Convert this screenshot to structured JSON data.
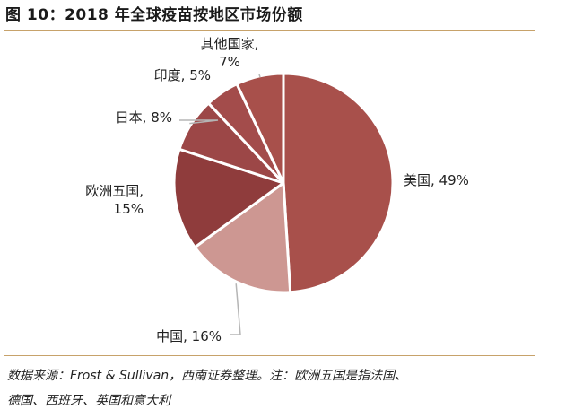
{
  "figure": {
    "title": "图 10：2018 年全球疫苗按地区市场份额",
    "source_line1": "数据来源：Frost & Sullivan，西南证券整理。注：欧洲五国是指法国、",
    "source_line2": "德国、西班牙、英国和意大利"
  },
  "chart_data": {
    "type": "pie",
    "title": "图 10：2018 年全球疫苗按地区市场份额",
    "start": "12 o'clock",
    "direction": "clockwise",
    "legend": "none",
    "slices": [
      {
        "label_lines": [
          "美国, 49%"
        ],
        "name": "美国",
        "value": 49,
        "color": "#a8504b"
      },
      {
        "label_lines": [
          "中国, 16%"
        ],
        "name": "中国",
        "value": 16,
        "color": "#cd9792"
      },
      {
        "label_lines": [
          "欧洲五国,",
          "15%"
        ],
        "name": "欧洲五国",
        "value": 15,
        "color": "#8f3c3c"
      },
      {
        "label_lines": [
          "日本, 8%"
        ],
        "name": "日本",
        "value": 8,
        "color": "#9c4747"
      },
      {
        "label_lines": [
          "印度, 5%"
        ],
        "name": "印度",
        "value": 5,
        "color": "#a34c4b"
      },
      {
        "label_lines": [
          "其他国家,",
          "7%"
        ],
        "name": "其他国家",
        "value": 7,
        "color": "#a8504b"
      }
    ]
  }
}
